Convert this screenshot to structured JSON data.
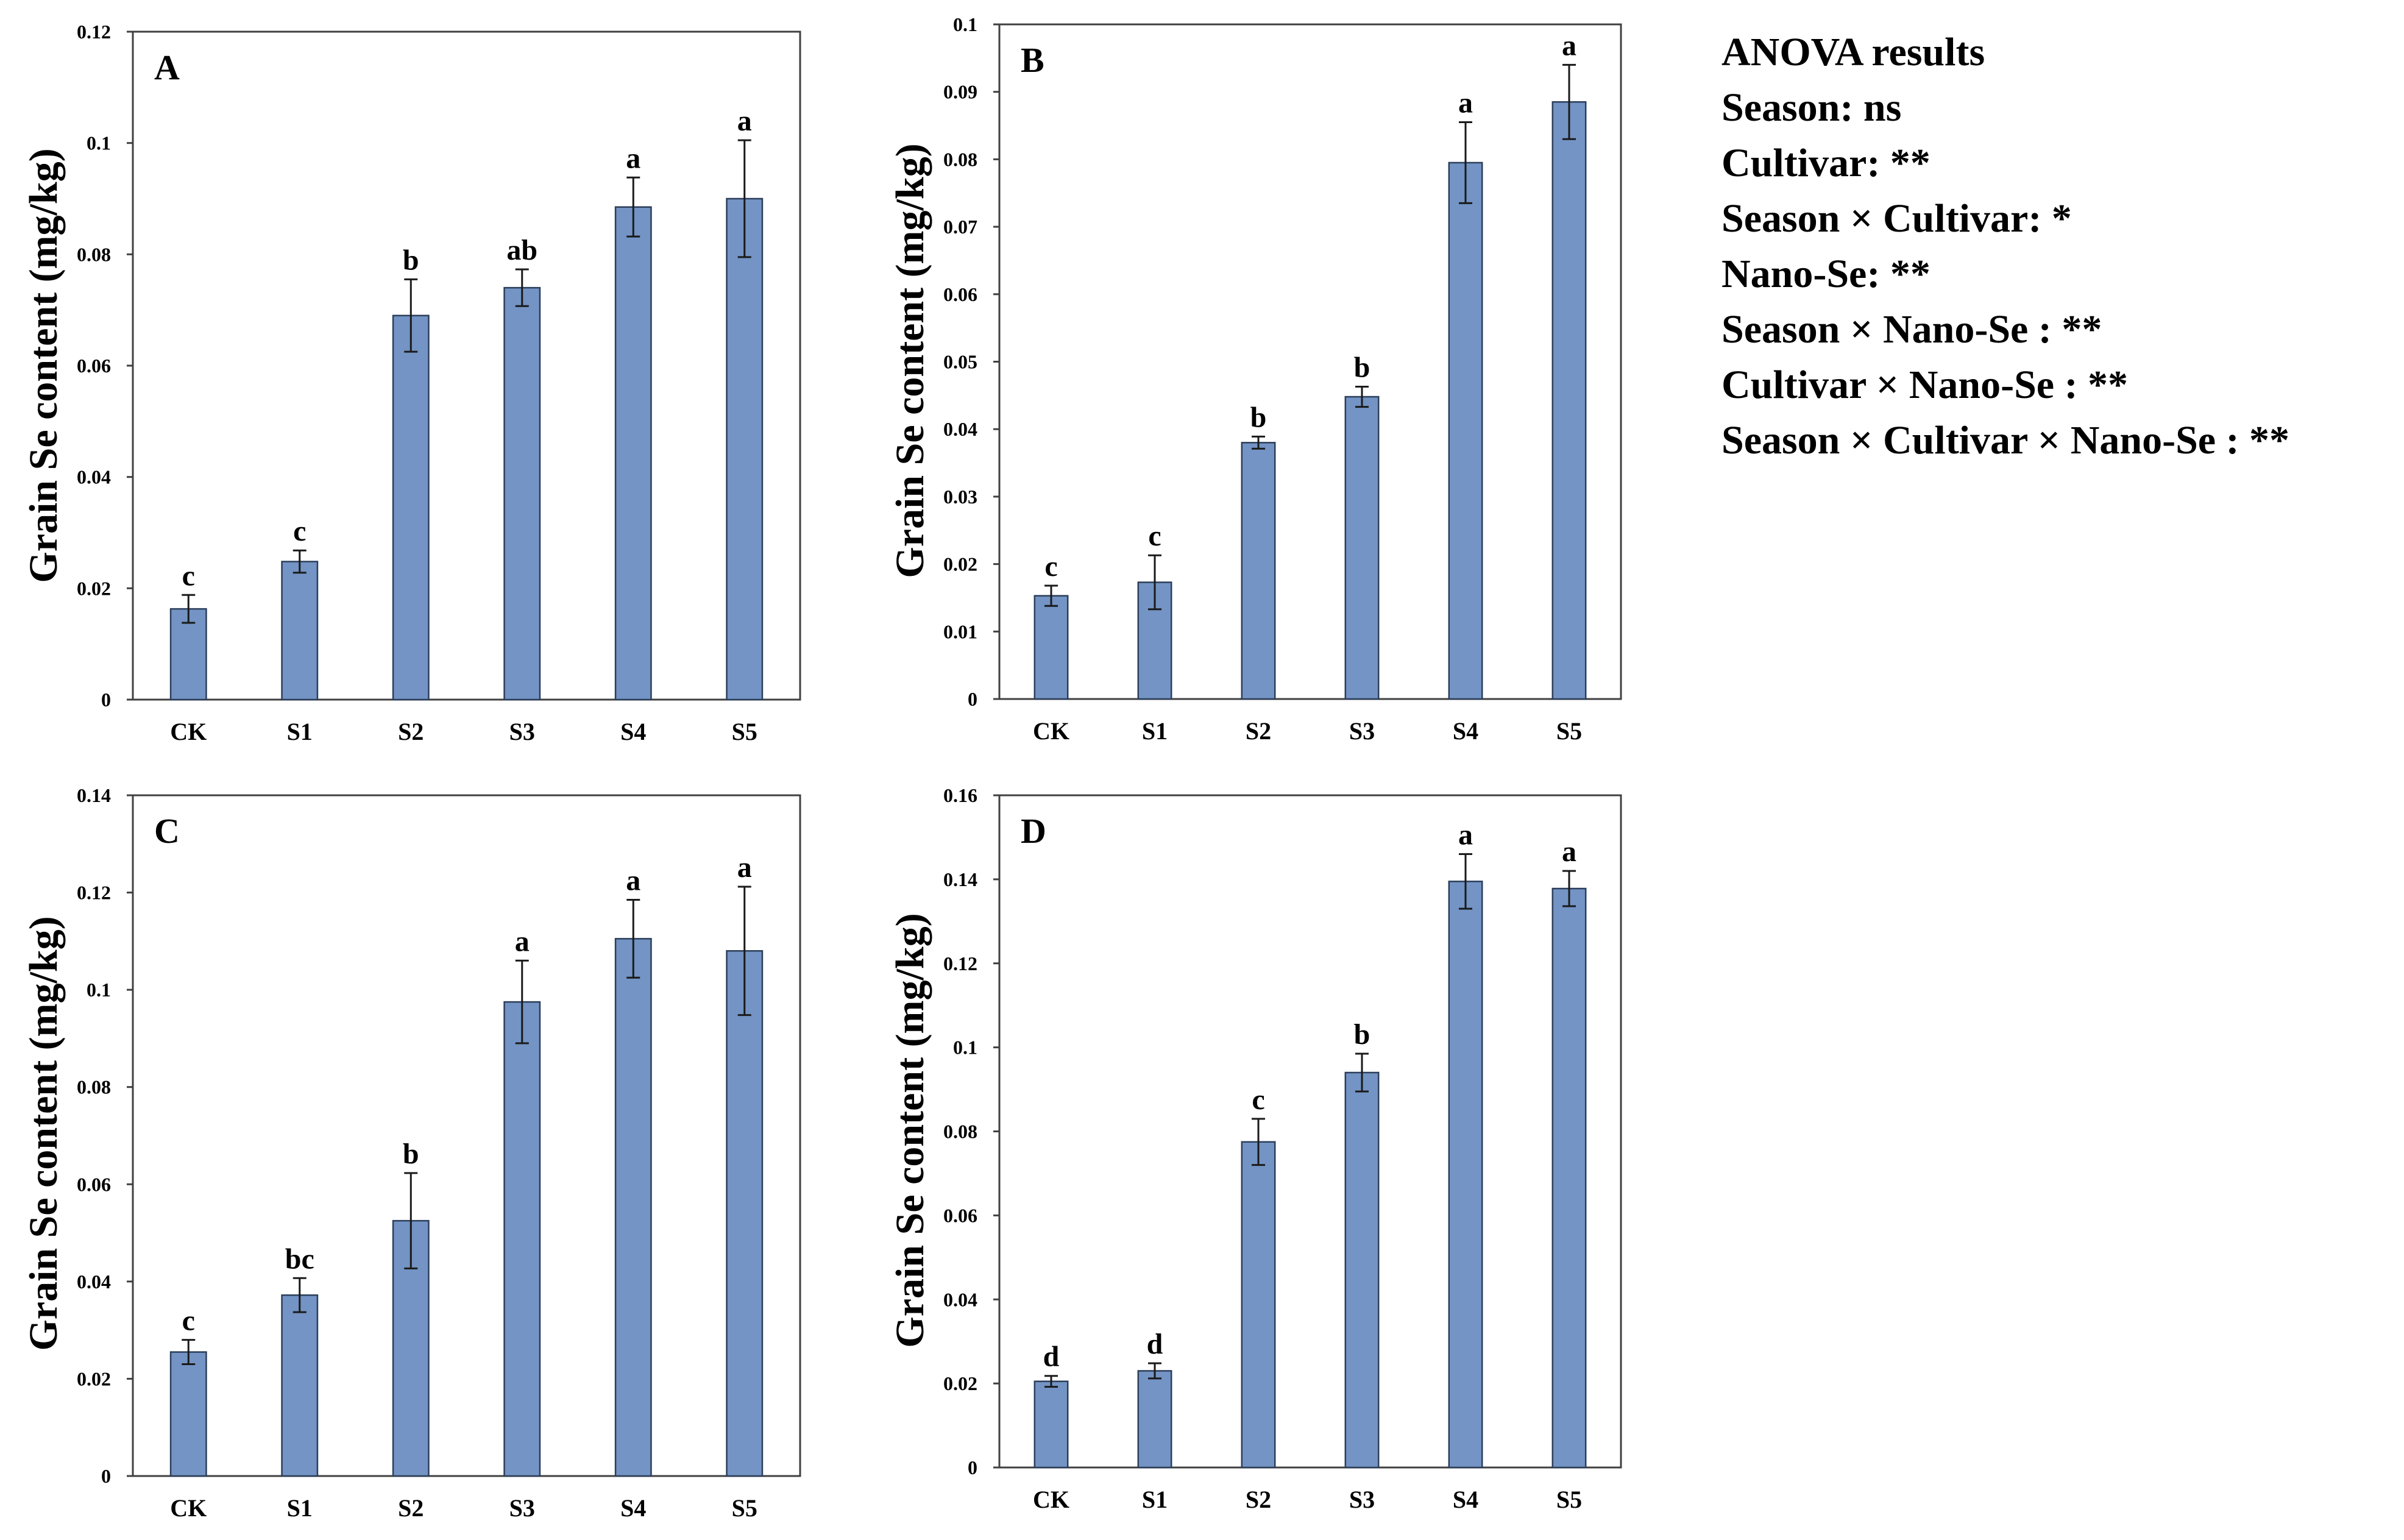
{
  "chart_data": [
    {
      "type": "bar",
      "panel": "A",
      "ylabel": "Grain Se content (mg/kg)",
      "xlabel": "",
      "categories": [
        "CK",
        "S1",
        "S2",
        "S3",
        "S4",
        "S5"
      ],
      "values": [
        0.0163,
        0.0248,
        0.069,
        0.074,
        0.0885,
        0.09
      ],
      "errors": [
        0.0025,
        0.002,
        0.0065,
        0.0033,
        0.0053,
        0.0105
      ],
      "letters": [
        "c",
        "c",
        "b",
        "ab",
        "a",
        "a"
      ],
      "ylim": [
        0,
        0.12
      ],
      "yticks": [
        0,
        0.02,
        0.04,
        0.06,
        0.08,
        0.1,
        0.12
      ],
      "ytick_labels": [
        "0",
        "0.02",
        "0.04",
        "0.06",
        "0.08",
        "0.1",
        "0.12"
      ],
      "bar_color": "#7394c4"
    },
    {
      "type": "bar",
      "panel": "B",
      "ylabel": "Grain Se content (mg/kg)",
      "xlabel": "",
      "categories": [
        "CK",
        "S1",
        "S2",
        "S3",
        "S4",
        "S5"
      ],
      "values": [
        0.0153,
        0.0173,
        0.038,
        0.0448,
        0.0795,
        0.0885
      ],
      "errors": [
        0.0015,
        0.004,
        0.0009,
        0.0015,
        0.006,
        0.0055
      ],
      "letters": [
        "c",
        "c",
        "b",
        "b",
        "a",
        "a"
      ],
      "ylim": [
        0,
        0.1
      ],
      "yticks": [
        0,
        0.01,
        0.02,
        0.03,
        0.04,
        0.05,
        0.06,
        0.07,
        0.08,
        0.09,
        0.1
      ],
      "ytick_labels": [
        "0",
        "0.01",
        "0.02",
        "0.03",
        "0.04",
        "0.05",
        "0.06",
        "0.07",
        "0.08",
        "0.09",
        "0.1"
      ],
      "bar_color": "#7394c4"
    },
    {
      "type": "bar",
      "panel": "C",
      "ylabel": "Grain Se content (mg/kg)",
      "xlabel": "",
      "categories": [
        "CK",
        "S1",
        "S2",
        "S3",
        "S4",
        "S5"
      ],
      "values": [
        0.0255,
        0.0372,
        0.0525,
        0.0975,
        0.1105,
        0.108
      ],
      "errors": [
        0.0025,
        0.0035,
        0.0098,
        0.0085,
        0.008,
        0.0132
      ],
      "letters": [
        "c",
        "bc",
        "b",
        "a",
        "a",
        "a"
      ],
      "ylim": [
        0,
        0.14
      ],
      "yticks": [
        0,
        0.02,
        0.04,
        0.06,
        0.08,
        0.1,
        0.12,
        0.14
      ],
      "ytick_labels": [
        "0",
        "0.02",
        "0.04",
        "0.06",
        "0.08",
        "0.1",
        "0.12",
        "0.14"
      ],
      "bar_color": "#7394c4"
    },
    {
      "type": "bar",
      "panel": "D",
      "ylabel": "Grain Se content (mg/kg)",
      "xlabel": "",
      "categories": [
        "CK",
        "S1",
        "S2",
        "S3",
        "S4",
        "S5"
      ],
      "values": [
        0.0205,
        0.023,
        0.0775,
        0.094,
        0.1395,
        0.1378
      ],
      "errors": [
        0.0013,
        0.0018,
        0.0055,
        0.0045,
        0.0065,
        0.0042
      ],
      "letters": [
        "d",
        "d",
        "c",
        "b",
        "a",
        "a"
      ],
      "ylim": [
        0,
        0.16
      ],
      "yticks": [
        0,
        0.02,
        0.04,
        0.06,
        0.08,
        0.1,
        0.12,
        0.14,
        0.16
      ],
      "ytick_labels": [
        "0",
        "0.02",
        "0.04",
        "0.06",
        "0.08",
        "0.1",
        "0.12",
        "0.14",
        "0.16"
      ],
      "bar_color": "#7394c4"
    }
  ],
  "anova": {
    "title": "ANOVA results",
    "lines": [
      "Season: ns",
      "Cultivar: **",
      "Season × Cultivar: *",
      "Nano-Se: **",
      "Season × Nano-Se : **",
      "Cultivar × Nano-Se : **",
      "Season × Cultivar × Nano-Se : **"
    ]
  }
}
